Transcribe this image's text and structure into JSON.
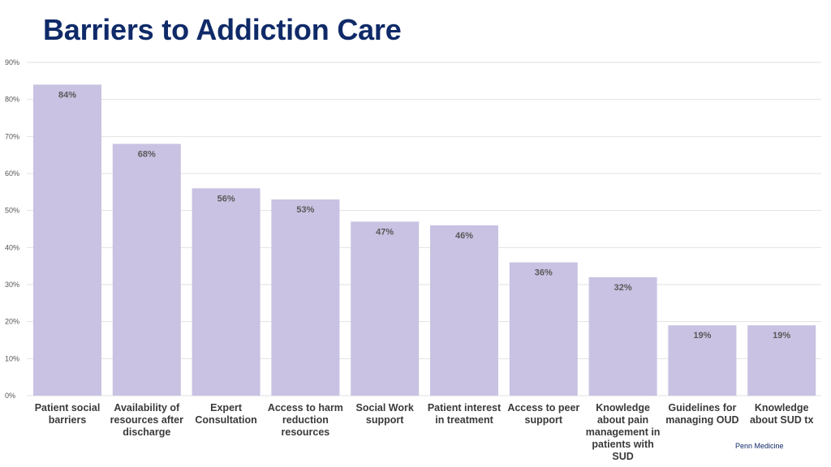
{
  "page": {
    "title": "Barriers to Addiction Care",
    "source": "Penn Medicine"
  },
  "chart_data": {
    "type": "bar",
    "title": "Barriers to Addiction Care",
    "xlabel": "",
    "ylabel": "",
    "ylim": [
      0,
      90
    ],
    "ytick_step": 10,
    "ytick_suffix": "%",
    "grid": true,
    "bar_color": "#c9c2e2",
    "categories": [
      "Patient social barriers",
      "Availability of resources after discharge",
      "Expert Consultation",
      "Access to harm reduction resources",
      "Social Work support",
      "Patient interest in treatment",
      "Access to peer support",
      "Knowledge about pain management in patients with SUD",
      "Guidelines for managing OUD",
      "Knowledge about SUD tx"
    ],
    "values": [
      84,
      68,
      56,
      53,
      47,
      46,
      36,
      32,
      19,
      19
    ],
    "data_labels": [
      "84%",
      "68%",
      "56%",
      "53%",
      "47%",
      "46%",
      "36%",
      "32%",
      "19%",
      "19%"
    ]
  }
}
